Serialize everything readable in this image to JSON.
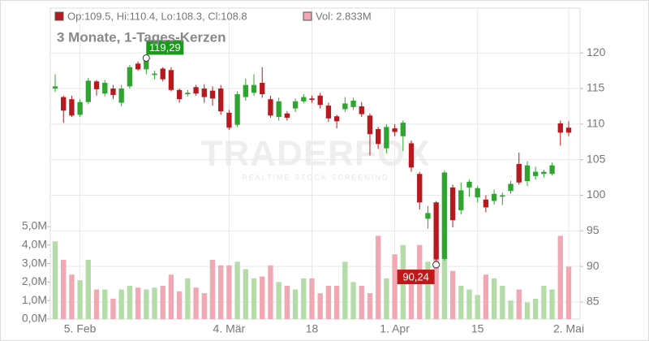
{
  "chart_data": {
    "type": "candlestick",
    "title": "3 Monate, 1-Tages-Kerzen",
    "legend": [
      "Op:109.5, Hi:110.4, Lo:108.3, Cl:108.8",
      "Vol: 2.833M"
    ],
    "watermark": [
      "TRADERFOX",
      "REALTIME STOCK SCREENING"
    ],
    "categories": [
      null,
      null,
      null,
      "5. Feb",
      null,
      null,
      null,
      null,
      null,
      null,
      null,
      null,
      null,
      null,
      null,
      null,
      null,
      null,
      null,
      null,
      null,
      "4. Mär",
      null,
      null,
      null,
      null,
      null,
      null,
      null,
      null,
      null,
      "18",
      null,
      null,
      null,
      null,
      null,
      null,
      null,
      null,
      null,
      "1. Apr",
      null,
      null,
      null,
      null,
      null,
      null,
      null,
      null,
      null,
      "15",
      null,
      null,
      null,
      null,
      null,
      null,
      null,
      null,
      null,
      null,
      "2. Mai"
    ],
    "open": [
      115,
      113.8,
      113.5,
      111.3,
      113.1,
      116,
      114.3,
      115,
      113,
      115.3,
      118.5,
      117.7,
      116.9,
      117.8,
      117.6,
      114.8,
      114.2,
      115.2,
      115,
      114.7,
      115,
      111.6,
      109.9,
      113.8,
      114.4,
      115.8,
      113.5,
      111,
      111.5,
      112.2,
      113.2,
      113.6,
      114,
      112.6,
      111.1,
      112.1,
      112.4,
      112.5,
      111.2,
      109.3,
      106.6,
      109.4,
      108.3,
      107.3,
      103,
      96.7,
      99,
      91,
      101.1,
      97.9,
      101.1,
      99.7,
      99.4,
      99.2,
      99.8,
      100.6,
      104.4,
      102,
      102.7,
      103,
      103,
      110.1,
      109.5
    ],
    "high": [
      117,
      114,
      114,
      113.5,
      116.5,
      116.2,
      116.2,
      115.5,
      115.5,
      118.3,
      118.8,
      119.29,
      117.5,
      118,
      118,
      115,
      114.8,
      115.5,
      115.6,
      115.3,
      115.5,
      112,
      114.6,
      116.4,
      117,
      118,
      114,
      113.7,
      111.8,
      113.6,
      114.2,
      114,
      114.4,
      113,
      111.3,
      113.8,
      113.7,
      113.1,
      111.5,
      109.6,
      110,
      110,
      110.5,
      107.7,
      103.3,
      98.5,
      99.2,
      103.5,
      101.5,
      101.8,
      102.2,
      101.3,
      100,
      100.8,
      100.4,
      102,
      106,
      104.8,
      104,
      103.6,
      104.6,
      110.5,
      110.4
    ],
    "low": [
      114.5,
      110.2,
      111,
      111,
      112.8,
      114,
      113.9,
      113.5,
      112.5,
      115,
      117.5,
      117,
      116.3,
      116,
      114.6,
      113,
      113.9,
      114,
      113,
      112.6,
      111.3,
      109.2,
      109.6,
      113.3,
      114,
      113.7,
      110.9,
      110.5,
      110.5,
      111.7,
      112.9,
      113,
      112.2,
      110.3,
      109.4,
      111.7,
      112,
      111,
      105.6,
      106.5,
      105.9,
      108.3,
      106.2,
      103.3,
      98,
      95.3,
      90.24,
      90.8,
      95.5,
      97.3,
      99.8,
      99,
      97.6,
      98.7,
      98.6,
      100.2,
      101.5,
      101.3,
      102.2,
      102.5,
      102.8,
      107,
      108.3
    ],
    "close": [
      115.3,
      111.9,
      111.2,
      113.1,
      116.1,
      114.9,
      115.8,
      114.1,
      115,
      118,
      117.7,
      119.3,
      117.1,
      116.3,
      114.8,
      113.5,
      114.4,
      114.3,
      113.8,
      113.6,
      111.8,
      109.5,
      114.2,
      115.5,
      115.5,
      114.2,
      111.2,
      113.2,
      110.9,
      113.2,
      113.8,
      113.4,
      112.7,
      110.8,
      110.4,
      112.9,
      113.3,
      111.4,
      108.6,
      107.2,
      109.6,
      108.9,
      110.2,
      103.9,
      99,
      97.5,
      91,
      103.2,
      96.5,
      100.7,
      101.9,
      101,
      98.3,
      100.2,
      100,
      101.6,
      101.8,
      104.2,
      103.3,
      103.3,
      104.2,
      108.8,
      108.8
    ],
    "volume": [
      4.2,
      3.2,
      2.4,
      2.1,
      3.2,
      1.6,
      1.6,
      1.1,
      1.6,
      1.8,
      1.7,
      1.6,
      1.7,
      1.8,
      2.4,
      1.5,
      2.2,
      1.7,
      1.4,
      3.2,
      2.9,
      2.9,
      3.1,
      2.7,
      2.2,
      2.3,
      2.9,
      2.0,
      1.8,
      1.6,
      2.2,
      2.2,
      1.4,
      1.8,
      1.8,
      3.1,
      2.0,
      1.8,
      1.4,
      4.5,
      2.2,
      3.5,
      4.0,
      2.6,
      4.0,
      3.1,
      4.0,
      3.2,
      2.6,
      1.8,
      1.6,
      1.3,
      2.4,
      2.2,
      1.8,
      1.0,
      1.6,
      0.9,
      1.1,
      1.8,
      1.6,
      4.5,
      2.833
    ],
    "up_color": "#2ea52e",
    "down_color": "#b8191e",
    "volume_up_color": "#b4dca8",
    "volume_down_color": "#f0a8b2",
    "ylim": [
      82.6,
      126.3
    ],
    "yticks": [
      85,
      90,
      95,
      100,
      105,
      110,
      115,
      120
    ],
    "y2lim": [
      0,
      16.8
    ],
    "y2ticks": [
      {
        "value": 0,
        "label": "0,0M"
      },
      {
        "value": 1,
        "label": "1,0M"
      },
      {
        "value": 2,
        "label": "2,0M"
      },
      {
        "value": 3,
        "label": "3,0M"
      },
      {
        "value": 4,
        "label": "4,0M"
      },
      {
        "value": 5,
        "label": "5,0M"
      }
    ],
    "annotations": [
      {
        "index": 11,
        "value": 119.29,
        "label": "119,29",
        "color": "#1a9a1a"
      },
      {
        "index": 46,
        "value": 90.24,
        "label": "90,24",
        "color": "#c01818"
      }
    ],
    "grid": true
  }
}
